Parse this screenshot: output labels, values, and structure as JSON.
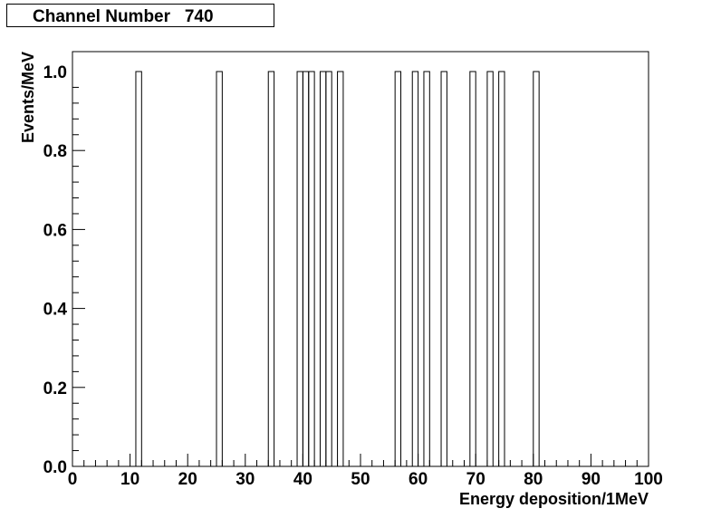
{
  "chart_data": {
    "type": "bar",
    "title": "Channel Number   740",
    "xlabel": "Energy deposition/1MeV",
    "ylabel": "Events/MeV",
    "xlim": [
      0,
      100
    ],
    "ylim": [
      0,
      1.05
    ],
    "x_ticks": [
      "0",
      "10",
      "20",
      "30",
      "40",
      "50",
      "60",
      "70",
      "80",
      "90",
      "100"
    ],
    "y_ticks": [
      "0.0",
      "0.2",
      "0.4",
      "0.6",
      "0.8",
      "1.0"
    ],
    "bin_width": 1,
    "bins": [
      {
        "x": 11,
        "value": 1
      },
      {
        "x": 25,
        "value": 1
      },
      {
        "x": 34,
        "value": 1
      },
      {
        "x": 39,
        "value": 1
      },
      {
        "x": 40,
        "value": 1
      },
      {
        "x": 41,
        "value": 1
      },
      {
        "x": 43,
        "value": 1
      },
      {
        "x": 44,
        "value": 1
      },
      {
        "x": 46,
        "value": 1
      },
      {
        "x": 56,
        "value": 1
      },
      {
        "x": 59,
        "value": 1
      },
      {
        "x": 61,
        "value": 1
      },
      {
        "x": 64,
        "value": 1
      },
      {
        "x": 69,
        "value": 1
      },
      {
        "x": 72,
        "value": 1
      },
      {
        "x": 74,
        "value": 1
      },
      {
        "x": 80,
        "value": 1
      }
    ],
    "grid": false,
    "legend": "none"
  }
}
